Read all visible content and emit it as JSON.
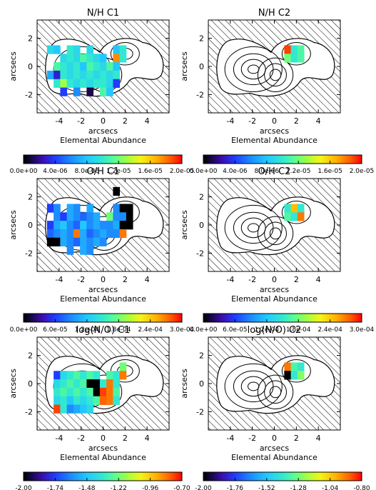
{
  "chart_data": [
    {
      "type": "heatmap",
      "title": "N/H C1",
      "xlabel": "arcsecs",
      "ylabel": "arcsecs",
      "colorbar_label": "Elemental Abundance",
      "xlim": [
        -6,
        6
      ],
      "ylim": [
        -3.3,
        3.3
      ],
      "x_ticks": [
        "-4",
        "-2",
        "0",
        "2",
        "4"
      ],
      "y_ticks": [
        "-2",
        "0",
        "2"
      ],
      "colorbar": {
        "min": 0.0,
        "max": 2e-05,
        "ticks": [
          "0.0e+00",
          "4.0e-06",
          "8.0e-06",
          "1.2e-05",
          "1.6e-05",
          "2.0e-05"
        ]
      },
      "cells": [
        {
          "x": -4.8,
          "y": 1.2,
          "v": 0.45
        },
        {
          "x": -4.2,
          "y": 1.2,
          "v": 0.4
        },
        {
          "x": -3.0,
          "y": 1.2,
          "v": 0.5
        },
        {
          "x": -2.4,
          "y": 1.2,
          "v": 0.45
        },
        {
          "x": -1.2,
          "y": 1.2,
          "v": 0.45
        },
        {
          "x": 1.2,
          "y": 1.2,
          "v": 0.4
        },
        {
          "x": 1.8,
          "y": 1.2,
          "v": 0.5
        },
        {
          "x": -3.6,
          "y": 0.6,
          "v": 0.45
        },
        {
          "x": -3.0,
          "y": 0.6,
          "v": 0.5
        },
        {
          "x": -2.4,
          "y": 0.6,
          "v": 0.45
        },
        {
          "x": -1.8,
          "y": 0.6,
          "v": 0.55
        },
        {
          "x": -1.2,
          "y": 0.6,
          "v": 0.5
        },
        {
          "x": -0.6,
          "y": 0.6,
          "v": 0.45
        },
        {
          "x": 0.0,
          "y": 0.6,
          "v": 0.4
        },
        {
          "x": 1.2,
          "y": 0.6,
          "v": 0.88
        },
        {
          "x": 1.8,
          "y": 0.6,
          "v": 0.5
        },
        {
          "x": -4.2,
          "y": 0.0,
          "v": 0.55
        },
        {
          "x": -3.6,
          "y": 0.0,
          "v": 0.5
        },
        {
          "x": -3.0,
          "y": 0.0,
          "v": 0.45
        },
        {
          "x": -2.4,
          "y": 0.0,
          "v": 0.5
        },
        {
          "x": -1.8,
          "y": 0.0,
          "v": 0.4
        },
        {
          "x": -1.2,
          "y": 0.0,
          "v": 0.55
        },
        {
          "x": -0.6,
          "y": 0.0,
          "v": 0.5
        },
        {
          "x": 0.0,
          "y": 0.0,
          "v": 0.45
        },
        {
          "x": 0.6,
          "y": 0.0,
          "v": 0.55
        },
        {
          "x": 1.2,
          "y": 0.0,
          "v": 0.4
        },
        {
          "x": -4.8,
          "y": -0.6,
          "v": 0.35
        },
        {
          "x": -4.2,
          "y": -0.6,
          "v": 0.15
        },
        {
          "x": -3.6,
          "y": -0.6,
          "v": 0.5
        },
        {
          "x": -3.0,
          "y": -0.6,
          "v": 0.45
        },
        {
          "x": -2.4,
          "y": -0.6,
          "v": 0.5
        },
        {
          "x": -1.8,
          "y": -0.6,
          "v": 0.45
        },
        {
          "x": -1.2,
          "y": -0.6,
          "v": 0.5
        },
        {
          "x": -0.6,
          "y": -0.6,
          "v": 0.45
        },
        {
          "x": 0.0,
          "y": -0.6,
          "v": 0.5
        },
        {
          "x": 0.6,
          "y": -0.6,
          "v": 0.45
        },
        {
          "x": 1.2,
          "y": -0.6,
          "v": 0.5
        },
        {
          "x": -4.2,
          "y": -1.2,
          "v": 0.5
        },
        {
          "x": -3.6,
          "y": -1.2,
          "v": 0.65
        },
        {
          "x": -3.0,
          "y": -1.2,
          "v": 0.5
        },
        {
          "x": -2.4,
          "y": -1.2,
          "v": 0.45
        },
        {
          "x": -1.8,
          "y": -1.2,
          "v": 0.5
        },
        {
          "x": -1.2,
          "y": -1.2,
          "v": 0.45
        },
        {
          "x": -0.6,
          "y": -1.2,
          "v": 0.5
        },
        {
          "x": 0.0,
          "y": -1.2,
          "v": 0.5
        },
        {
          "x": 0.6,
          "y": -1.2,
          "v": 0.45
        },
        {
          "x": 1.2,
          "y": -1.2,
          "v": 0.2
        },
        {
          "x": -3.6,
          "y": -1.8,
          "v": 0.2
        },
        {
          "x": -2.4,
          "y": -1.8,
          "v": 0.3
        },
        {
          "x": -1.2,
          "y": -1.8,
          "v": 0.05
        },
        {
          "x": 0.0,
          "y": -1.8,
          "v": 0.55
        },
        {
          "x": 0.6,
          "y": -1.8,
          "v": 0.4
        }
      ]
    },
    {
      "type": "heatmap",
      "title": "N/H C2",
      "xlabel": "arcsecs",
      "ylabel": "arcsecs",
      "colorbar_label": "Elemental Abundance",
      "xlim": [
        -6,
        6
      ],
      "ylim": [
        -3.3,
        3.3
      ],
      "x_ticks": [
        "-4",
        "-2",
        "0",
        "2",
        "4"
      ],
      "y_ticks": [
        "-2",
        "0",
        "2"
      ],
      "colorbar": {
        "min": 0.0,
        "max": 2e-05,
        "ticks": [
          "0.0e+00",
          "4.0e-06",
          "8.0e-06",
          "1.2e-05",
          "1.6e-05",
          "2.0e-05"
        ]
      },
      "cells": [
        {
          "x": 1.2,
          "y": 1.2,
          "v": 0.95
        },
        {
          "x": 1.8,
          "y": 1.2,
          "v": 0.5
        },
        {
          "x": 2.4,
          "y": 1.2,
          "v": 0.55
        },
        {
          "x": 1.2,
          "y": 0.6,
          "v": 0.6
        },
        {
          "x": 1.8,
          "y": 0.6,
          "v": 0.5
        },
        {
          "x": 2.4,
          "y": 0.6,
          "v": 0.55
        }
      ]
    },
    {
      "type": "heatmap",
      "title": "O/H C1",
      "xlabel": "arcsecs",
      "ylabel": "arcsecs",
      "colorbar_label": "Elemental Abundance",
      "xlim": [
        -6,
        6
      ],
      "ylim": [
        -3.3,
        3.3
      ],
      "x_ticks": [
        "-4",
        "-2",
        "0",
        "2",
        "4"
      ],
      "y_ticks": [
        "-2",
        "0",
        "2"
      ],
      "colorbar": {
        "min": 0.0,
        "max": 0.0003,
        "ticks": [
          "0.0e+00",
          "6.0e-05",
          "1.2e-04",
          "1.8e-04",
          "2.4e-04",
          "3.0e-04"
        ]
      },
      "cells": [
        {
          "x": 1.2,
          "y": 2.4,
          "v": 0.0
        },
        {
          "x": -4.8,
          "y": 1.2,
          "v": 0.2
        },
        {
          "x": -4.2,
          "y": 1.2,
          "v": 0.3
        },
        {
          "x": -3.0,
          "y": 1.2,
          "v": 0.35
        },
        {
          "x": -2.4,
          "y": 1.2,
          "v": 0.3
        },
        {
          "x": -1.2,
          "y": 1.2,
          "v": 0.35
        },
        {
          "x": 1.2,
          "y": 1.2,
          "v": 0.3
        },
        {
          "x": 1.8,
          "y": 1.2,
          "v": 0.0
        },
        {
          "x": 2.4,
          "y": 1.2,
          "v": 0.0
        },
        {
          "x": -4.2,
          "y": 0.6,
          "v": 0.3
        },
        {
          "x": -3.6,
          "y": 0.6,
          "v": 0.2
        },
        {
          "x": -3.0,
          "y": 0.6,
          "v": 0.35
        },
        {
          "x": -2.4,
          "y": 0.6,
          "v": 0.3
        },
        {
          "x": -1.8,
          "y": 0.6,
          "v": 0.25
        },
        {
          "x": -1.2,
          "y": 0.6,
          "v": 0.3
        },
        {
          "x": -0.6,
          "y": 0.6,
          "v": 0.35
        },
        {
          "x": 0.6,
          "y": 0.6,
          "v": 0.6
        },
        {
          "x": 1.2,
          "y": 0.6,
          "v": 0.3
        },
        {
          "x": 1.8,
          "y": 0.6,
          "v": 0.3
        },
        {
          "x": 2.4,
          "y": 0.6,
          "v": 0.0
        },
        {
          "x": -4.8,
          "y": 0.0,
          "v": 0.2
        },
        {
          "x": -4.2,
          "y": 0.0,
          "v": 0.35
        },
        {
          "x": -3.6,
          "y": 0.0,
          "v": 0.4
        },
        {
          "x": -3.0,
          "y": 0.0,
          "v": 0.3
        },
        {
          "x": -2.4,
          "y": 0.0,
          "v": 0.25
        },
        {
          "x": -1.8,
          "y": 0.0,
          "v": 0.4
        },
        {
          "x": -1.2,
          "y": 0.0,
          "v": 0.3
        },
        {
          "x": -0.6,
          "y": 0.0,
          "v": 0.35
        },
        {
          "x": 0.0,
          "y": 0.0,
          "v": 0.3
        },
        {
          "x": 0.6,
          "y": 0.0,
          "v": 0.3
        },
        {
          "x": 1.2,
          "y": 0.0,
          "v": 0.35
        },
        {
          "x": 1.8,
          "y": 0.0,
          "v": 0.0
        },
        {
          "x": 2.4,
          "y": 0.0,
          "v": 0.0
        },
        {
          "x": -4.8,
          "y": -0.6,
          "v": 0.25
        },
        {
          "x": -4.2,
          "y": -0.6,
          "v": 0.3
        },
        {
          "x": -3.6,
          "y": -0.6,
          "v": 0.35
        },
        {
          "x": -3.0,
          "y": -0.6,
          "v": 0.3
        },
        {
          "x": -2.4,
          "y": -0.6,
          "v": 0.9
        },
        {
          "x": -1.8,
          "y": -0.6,
          "v": 0.35
        },
        {
          "x": -1.2,
          "y": -0.6,
          "v": 0.25
        },
        {
          "x": -0.6,
          "y": -0.6,
          "v": 0.3
        },
        {
          "x": 0.0,
          "y": -0.6,
          "v": 0.35
        },
        {
          "x": 0.6,
          "y": -0.6,
          "v": 0.3
        },
        {
          "x": 1.2,
          "y": -0.6,
          "v": 0.3
        },
        {
          "x": 1.8,
          "y": -0.6,
          "v": 0.9
        },
        {
          "x": -4.8,
          "y": -1.2,
          "v": 0.0
        },
        {
          "x": -4.2,
          "y": -1.2,
          "v": 0.0
        },
        {
          "x": -3.6,
          "y": -1.2,
          "v": 0.35
        },
        {
          "x": -3.0,
          "y": -1.2,
          "v": 0.3
        },
        {
          "x": -2.4,
          "y": -1.2,
          "v": 0.25
        },
        {
          "x": -1.8,
          "y": -1.2,
          "v": 0.35
        },
        {
          "x": -1.2,
          "y": -1.2,
          "v": 0.3
        },
        {
          "x": -0.6,
          "y": -1.2,
          "v": 0.35
        },
        {
          "x": 0.0,
          "y": -1.2,
          "v": 0.3
        },
        {
          "x": -3.0,
          "y": -1.8,
          "v": 0.3
        },
        {
          "x": -1.8,
          "y": -1.8,
          "v": 0.35
        },
        {
          "x": -1.2,
          "y": -1.8,
          "v": 0.3
        }
      ]
    },
    {
      "type": "heatmap",
      "title": "O/H C2",
      "xlabel": "arcsecs",
      "ylabel": "arcsecs",
      "colorbar_label": "Elemental Abundance",
      "xlim": [
        -6,
        6
      ],
      "ylim": [
        -3.3,
        3.3
      ],
      "x_ticks": [
        "-4",
        "-2",
        "0",
        "2",
        "4"
      ],
      "y_ticks": [
        "-2",
        "0",
        "2"
      ],
      "colorbar": {
        "min": 0.0,
        "max": 0.0003,
        "ticks": [
          "0.0e+00",
          "6.0e-05",
          "1.2e-04",
          "1.8e-04",
          "2.4e-04",
          "3.0e-04"
        ]
      },
      "cells": [
        {
          "x": 1.2,
          "y": 1.2,
          "v": 0.5
        },
        {
          "x": 1.8,
          "y": 1.2,
          "v": 0.82
        },
        {
          "x": 2.4,
          "y": 1.2,
          "v": 0.5
        },
        {
          "x": 1.2,
          "y": 0.6,
          "v": 0.55
        },
        {
          "x": 1.8,
          "y": 0.6,
          "v": 0.5
        },
        {
          "x": 2.4,
          "y": 0.6,
          "v": 0.9
        }
      ]
    },
    {
      "type": "heatmap",
      "title": "log(N/O) C1",
      "xlabel": "arcsecs",
      "ylabel": "arcsecs",
      "colorbar_label": "Elemental Abundance",
      "xlim": [
        -6,
        6
      ],
      "ylim": [
        -3.3,
        3.3
      ],
      "x_ticks": [
        "-4",
        "-2",
        "0",
        "2",
        "4"
      ],
      "y_ticks": [
        "-2",
        "0",
        "2"
      ],
      "colorbar": {
        "min": -2.0,
        "max": -0.7,
        "ticks": [
          "-2.00",
          "-1.74",
          "-1.48",
          "-1.22",
          "-0.96",
          "-0.70"
        ]
      },
      "cells": [
        {
          "x": 1.8,
          "y": 1.2,
          "v": 0.6
        },
        {
          "x": -4.2,
          "y": 0.6,
          "v": 0.2
        },
        {
          "x": -3.6,
          "y": 0.6,
          "v": 0.45
        },
        {
          "x": -3.0,
          "y": 0.6,
          "v": 0.5
        },
        {
          "x": -2.4,
          "y": 0.6,
          "v": 0.55
        },
        {
          "x": -1.8,
          "y": 0.6,
          "v": 0.5
        },
        {
          "x": -1.2,
          "y": 0.6,
          "v": 0.55
        },
        {
          "x": -0.6,
          "y": 0.6,
          "v": 0.5
        },
        {
          "x": 0.6,
          "y": 0.6,
          "v": 0.55
        },
        {
          "x": 1.2,
          "y": 0.6,
          "v": 0.5
        },
        {
          "x": 1.8,
          "y": 0.6,
          "v": 0.9
        },
        {
          "x": -4.2,
          "y": 0.0,
          "v": 0.45
        },
        {
          "x": -3.6,
          "y": 0.0,
          "v": 0.5
        },
        {
          "x": -3.0,
          "y": 0.0,
          "v": 0.55
        },
        {
          "x": -2.4,
          "y": 0.0,
          "v": 0.5
        },
        {
          "x": -1.8,
          "y": 0.0,
          "v": 0.55
        },
        {
          "x": -1.2,
          "y": 0.0,
          "v": 0.0
        },
        {
          "x": -0.6,
          "y": 0.0,
          "v": 0.0
        },
        {
          "x": 0.0,
          "y": 0.0,
          "v": 0.5
        },
        {
          "x": 0.6,
          "y": 0.0,
          "v": 0.9
        },
        {
          "x": 1.2,
          "y": 0.0,
          "v": 0.5
        },
        {
          "x": -4.2,
          "y": -0.6,
          "v": 0.5
        },
        {
          "x": -3.6,
          "y": -0.6,
          "v": 0.55
        },
        {
          "x": -3.0,
          "y": -0.6,
          "v": 0.5
        },
        {
          "x": -2.4,
          "y": -0.6,
          "v": 0.55
        },
        {
          "x": -1.8,
          "y": -0.6,
          "v": 0.5
        },
        {
          "x": -1.2,
          "y": -0.6,
          "v": 0.55
        },
        {
          "x": -0.6,
          "y": -0.6,
          "v": 0.0
        },
        {
          "x": 0.0,
          "y": -0.6,
          "v": 0.95
        },
        {
          "x": 0.6,
          "y": -0.6,
          "v": 0.9
        },
        {
          "x": 1.2,
          "y": -0.6,
          "v": 0.55
        },
        {
          "x": -4.2,
          "y": -1.2,
          "v": 0.45
        },
        {
          "x": -3.6,
          "y": -1.2,
          "v": 0.5
        },
        {
          "x": -3.0,
          "y": -1.2,
          "v": 0.4
        },
        {
          "x": -2.4,
          "y": -1.2,
          "v": 0.5
        },
        {
          "x": -1.8,
          "y": -1.2,
          "v": 0.45
        },
        {
          "x": -1.2,
          "y": -1.2,
          "v": 0.5
        },
        {
          "x": -0.6,
          "y": -1.2,
          "v": 0.55
        },
        {
          "x": 0.0,
          "y": -1.2,
          "v": 0.92
        },
        {
          "x": 0.6,
          "y": -1.2,
          "v": 0.9
        },
        {
          "x": 1.2,
          "y": -1.2,
          "v": 0.5
        },
        {
          "x": -4.2,
          "y": -1.8,
          "v": 0.95
        },
        {
          "x": -3.6,
          "y": -1.8,
          "v": 0.5
        },
        {
          "x": -3.0,
          "y": -1.8,
          "v": 0.3
        },
        {
          "x": -2.4,
          "y": -1.8,
          "v": 0.35
        },
        {
          "x": -1.8,
          "y": -1.8,
          "v": 0.4
        },
        {
          "x": -1.2,
          "y": -1.8,
          "v": 0.45
        }
      ]
    },
    {
      "type": "heatmap",
      "title": "log(N/O) C2",
      "xlabel": "arcsecs",
      "ylabel": "arcsecs",
      "colorbar_label": "Elemental Abundance",
      "xlim": [
        -6,
        6
      ],
      "ylim": [
        -3.3,
        3.3
      ],
      "x_ticks": [
        "-4",
        "-2",
        "0",
        "2",
        "4"
      ],
      "y_ticks": [
        "-2",
        "0",
        "2"
      ],
      "colorbar": {
        "min": -2.0,
        "max": -0.8,
        "ticks": [
          "-2.00",
          "-1.76",
          "-1.52",
          "-1.28",
          "-1.04",
          "-0.80"
        ]
      },
      "cells": [
        {
          "x": 1.2,
          "y": 1.2,
          "v": 0.9
        },
        {
          "x": 1.8,
          "y": 1.2,
          "v": 0.55
        },
        {
          "x": 2.4,
          "y": 1.2,
          "v": 0.5
        },
        {
          "x": 1.2,
          "y": 0.6,
          "v": 0.0
        },
        {
          "x": 1.8,
          "y": 0.6,
          "v": 0.5
        },
        {
          "x": 2.4,
          "y": 0.6,
          "v": 0.62
        }
      ]
    }
  ]
}
